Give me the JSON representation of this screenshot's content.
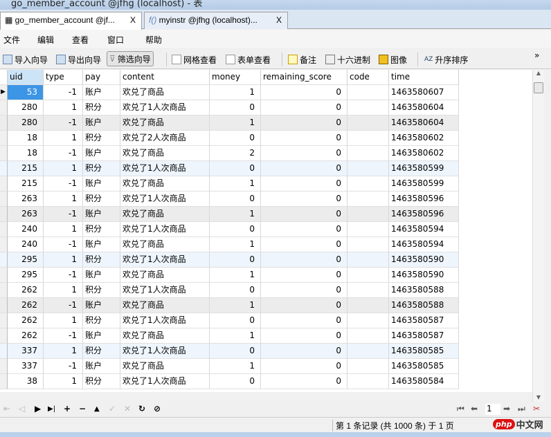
{
  "window": {
    "title": "go_member_account @jfhg (localhost) - 表"
  },
  "tabs": [
    {
      "label": "go_member_account @jf...",
      "close": "X",
      "icon": "table-icon"
    },
    {
      "label": "myinstr @jfhg (localhost)...",
      "close": "X",
      "icon": "function-icon"
    }
  ],
  "menu": [
    "文件",
    "编辑",
    "查看",
    "窗口",
    "帮助"
  ],
  "toolbar": {
    "import": "导入向导",
    "export": "导出向导",
    "filter": "筛选向导",
    "grid_view": "网格查看",
    "form_view": "表单查看",
    "memo": "备注",
    "hex": "十六进制",
    "image": "图像",
    "sort_asc": "升序排序",
    "more": "»"
  },
  "columns": [
    "uid",
    "type",
    "pay",
    "content",
    "money",
    "remaining_score",
    "code",
    "time"
  ],
  "rows": [
    [
      "53",
      "-1",
      "账户",
      "欢兑了商品",
      "1",
      "0",
      "",
      "1463580607"
    ],
    [
      "280",
      "1",
      "积分",
      "欢兑了1人次商品",
      "0",
      "0",
      "",
      "1463580604"
    ],
    [
      "280",
      "-1",
      "账户",
      "欢兑了商品",
      "1",
      "0",
      "",
      "1463580604"
    ],
    [
      "18",
      "1",
      "积分",
      "欢兑了2人次商品",
      "0",
      "0",
      "",
      "1463580602"
    ],
    [
      "18",
      "-1",
      "账户",
      "欢兑了商品",
      "2",
      "0",
      "",
      "1463580602"
    ],
    [
      "215",
      "1",
      "积分",
      "欢兑了1人次商品",
      "0",
      "0",
      "",
      "1463580599"
    ],
    [
      "215",
      "-1",
      "账户",
      "欢兑了商品",
      "1",
      "0",
      "",
      "1463580599"
    ],
    [
      "263",
      "1",
      "积分",
      "欢兑了1人次商品",
      "0",
      "0",
      "",
      "1463580596"
    ],
    [
      "263",
      "-1",
      "账户",
      "欢兑了商品",
      "1",
      "0",
      "",
      "1463580596"
    ],
    [
      "240",
      "1",
      "积分",
      "欢兑了1人次商品",
      "0",
      "0",
      "",
      "1463580594"
    ],
    [
      "240",
      "-1",
      "账户",
      "欢兑了商品",
      "1",
      "0",
      "",
      "1463580594"
    ],
    [
      "295",
      "1",
      "积分",
      "欢兑了1人次商品",
      "0",
      "0",
      "",
      "1463580590"
    ],
    [
      "295",
      "-1",
      "账户",
      "欢兑了商品",
      "1",
      "0",
      "",
      "1463580590"
    ],
    [
      "262",
      "1",
      "积分",
      "欢兑了1人次商品",
      "0",
      "0",
      "",
      "1463580588"
    ],
    [
      "262",
      "-1",
      "账户",
      "欢兑了商品",
      "1",
      "0",
      "",
      "1463580588"
    ],
    [
      "262",
      "1",
      "积分",
      "欢兑了1人次商品",
      "0",
      "0",
      "",
      "1463580587"
    ],
    [
      "262",
      "-1",
      "账户",
      "欢兑了商品",
      "1",
      "0",
      "",
      "1463580587"
    ],
    [
      "337",
      "1",
      "积分",
      "欢兑了1人次商品",
      "0",
      "0",
      "",
      "1463580585"
    ],
    [
      "337",
      "-1",
      "账户",
      "欢兑了商品",
      "1",
      "0",
      "",
      "1463580585"
    ],
    [
      "38",
      "1",
      "积分",
      "欢兑了1人次商品",
      "0",
      "0",
      "",
      "1463580584"
    ]
  ],
  "row_styles": [
    "sel",
    "",
    "gray",
    "",
    "",
    "blue",
    "",
    "",
    "gray",
    "",
    "",
    "blue",
    "",
    "",
    "gray",
    "",
    "",
    "blue",
    "",
    ""
  ],
  "nav": {
    "first": "⇤",
    "prev": "◁",
    "next": "▶",
    "last": "▶|",
    "add": "+",
    "delete": "−",
    "up": "▲",
    "apply": "✓",
    "cancel": "✕",
    "refresh": "↻",
    "stop": "⊘",
    "page": "1"
  },
  "status": {
    "text": "第 1 条记录 (共 1000 条) 于 1 页"
  },
  "watermark": "php中文网",
  "colors": {
    "selected_cell": "#3d95e6",
    "alt_blue": "#eef5fd",
    "alt_gray": "#ececec"
  }
}
